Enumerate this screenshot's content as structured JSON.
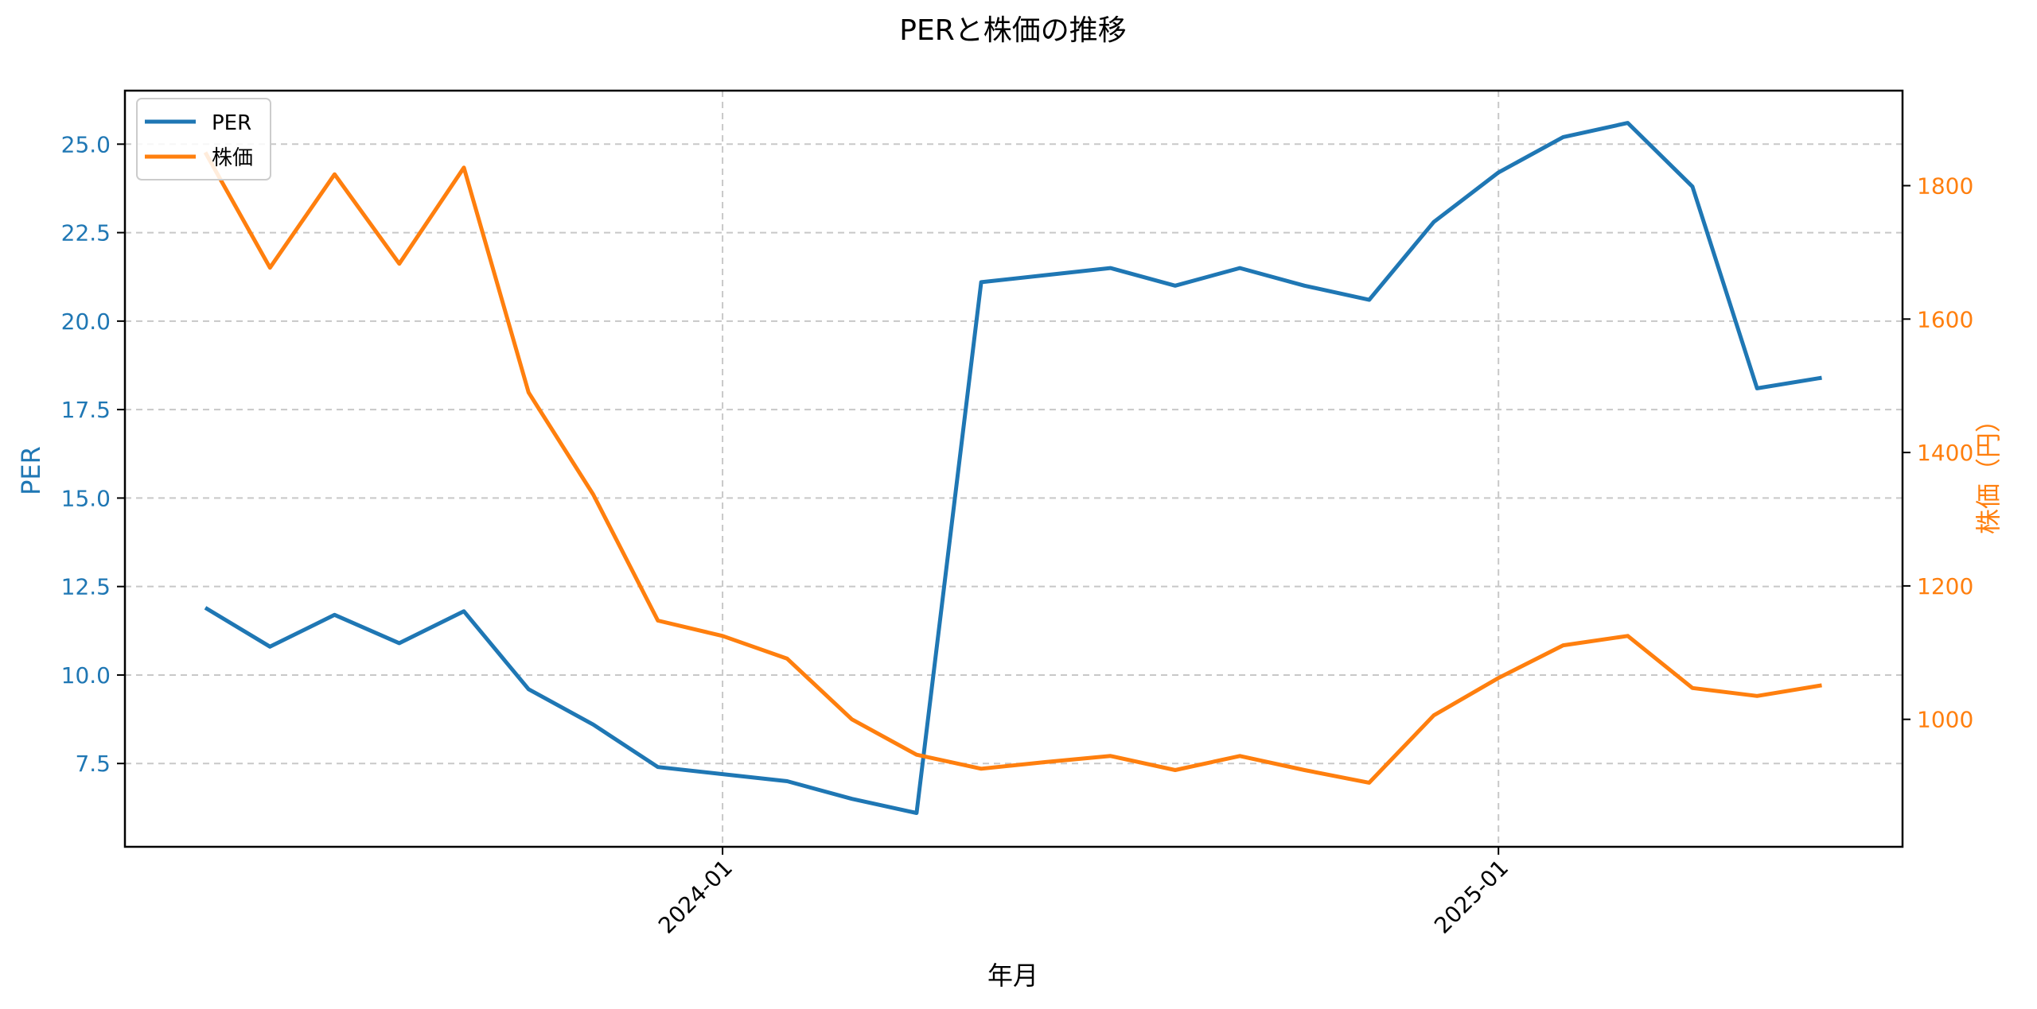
{
  "chart_data": {
    "type": "line",
    "title": "PERと株価の推移",
    "xlabel": "年月",
    "ylabel_left": "PER",
    "ylabel_right": "株価（円）",
    "x": [
      "2023-05",
      "2023-06",
      "2023-07",
      "2023-08",
      "2023-09",
      "2023-10",
      "2023-11",
      "2023-12",
      "2024-01",
      "2024-02",
      "2024-03",
      "2024-04",
      "2024-05",
      "2024-06",
      "2024-07",
      "2024-08",
      "2024-09",
      "2024-10",
      "2024-11",
      "2024-12",
      "2025-01",
      "2025-02",
      "2025-03",
      "2025-04",
      "2025-05",
      "2025-06"
    ],
    "x_ticks": [
      "2024-01",
      "2025-01"
    ],
    "y_left_ticks": [
      "7.5",
      "10.0",
      "12.5",
      "15.0",
      "17.5",
      "20.0",
      "22.5",
      "25.0"
    ],
    "y_right_ticks": [
      "1000",
      "1200",
      "1400",
      "1600",
      "1800"
    ],
    "ylim_left": [
      5.0,
      26.5
    ],
    "ylim_right": [
      820,
      1940
    ],
    "grid": true,
    "legend_position": "upper left",
    "series": [
      {
        "name": "PER",
        "axis": "left",
        "color": "#1f77b4",
        "values": [
          11.9,
          10.8,
          11.7,
          10.9,
          11.8,
          9.6,
          8.6,
          7.4,
          7.2,
          7.0,
          6.5,
          6.1,
          21.1,
          21.3,
          21.5,
          21.0,
          21.5,
          21.0,
          20.6,
          22.8,
          24.2,
          25.2,
          25.6,
          23.8,
          18.1,
          18.4
        ]
      },
      {
        "name": "株価",
        "axis": "right",
        "color": "#ff7f0e",
        "values": [
          1850,
          1677,
          1817,
          1683,
          1827,
          1490,
          1337,
          1148,
          1125,
          1091,
          1000,
          947,
          926,
          936,
          945,
          924,
          945,
          924,
          905,
          1006,
          1062,
          1111,
          1125,
          1047,
          1035,
          1051
        ]
      }
    ]
  },
  "legend": {
    "items": [
      {
        "label": "PER",
        "color": "#1f77b4"
      },
      {
        "label": "株価",
        "color": "#ff7f0e"
      }
    ]
  }
}
